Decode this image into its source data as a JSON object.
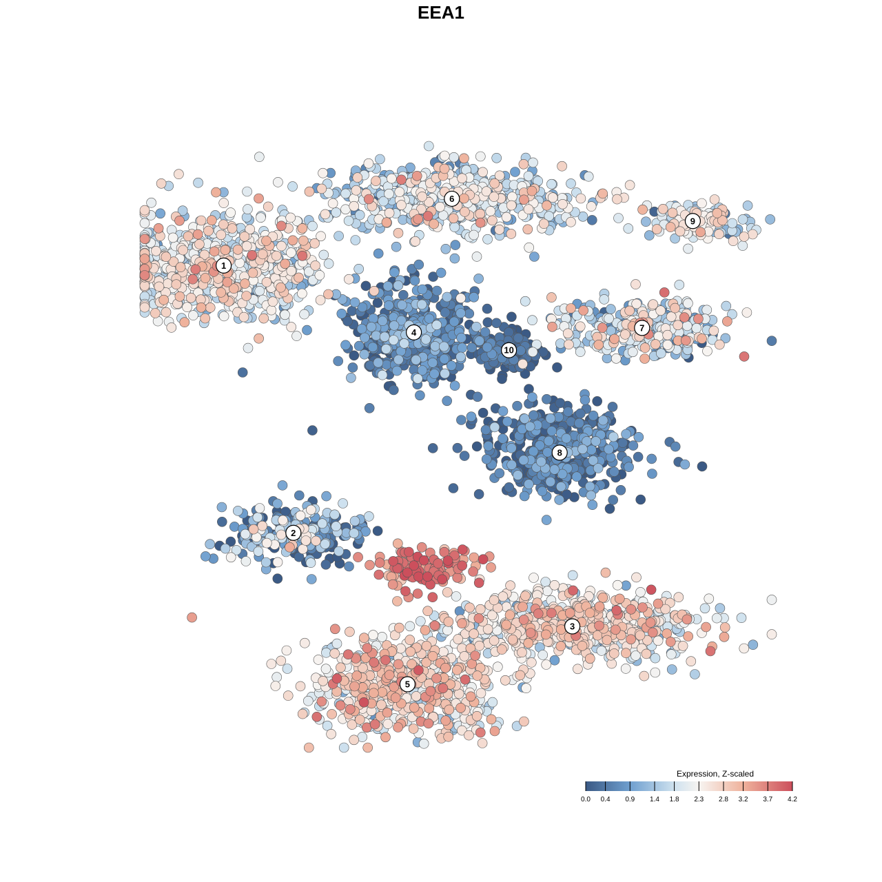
{
  "chart_data": {
    "type": "scatter",
    "title": "EEA1",
    "legend_title": "Expression, Z-scaled",
    "legend_placement": "bottom-right",
    "color_scale": {
      "min": 0.0,
      "max": 4.2,
      "ticks": [
        "0.0",
        "0.4",
        "0.9",
        "1.4",
        "1.8",
        "2.3",
        "2.8",
        "3.2",
        "3.7",
        "4.2"
      ],
      "stops": [
        {
          "value": 0.0,
          "color": "#3b5a85"
        },
        {
          "value": 0.9,
          "color": "#6f9fcf"
        },
        {
          "value": 1.8,
          "color": "#cfe2ef"
        },
        {
          "value": 2.3,
          "color": "#f7f4f1"
        },
        {
          "value": 3.2,
          "color": "#efb29c"
        },
        {
          "value": 4.2,
          "color": "#cc4f5c"
        }
      ]
    },
    "grid": false,
    "axes_visible": false,
    "clusters": [
      {
        "id": "1",
        "x": 0.13,
        "y": 0.69,
        "spread_x": 0.095,
        "spread_y": 0.075,
        "mean_expr": 2.1,
        "sd_expr": 0.6,
        "n": 700
      },
      {
        "id": "2",
        "x": 0.24,
        "y": 0.09,
        "spread_x": 0.06,
        "spread_y": 0.04,
        "mean_expr": 0.9,
        "sd_expr": 0.9,
        "n": 260
      },
      {
        "id": "3",
        "x": 0.68,
        "y": -0.12,
        "spread_x": 0.12,
        "spread_y": 0.05,
        "mean_expr": 2.3,
        "sd_expr": 0.6,
        "n": 650
      },
      {
        "id": "4",
        "x": 0.43,
        "y": 0.54,
        "spread_x": 0.06,
        "spread_y": 0.065,
        "mean_expr": 0.5,
        "sd_expr": 0.5,
        "n": 450
      },
      {
        "id": "5",
        "x": 0.42,
        "y": -0.25,
        "spread_x": 0.09,
        "spread_y": 0.065,
        "mean_expr": 2.5,
        "sd_expr": 0.6,
        "n": 550
      },
      {
        "id": "6",
        "x": 0.49,
        "y": 0.84,
        "spread_x": 0.12,
        "spread_y": 0.045,
        "mean_expr": 1.8,
        "sd_expr": 0.7,
        "n": 520
      },
      {
        "id": "7",
        "x": 0.79,
        "y": 0.55,
        "spread_x": 0.085,
        "spread_y": 0.04,
        "mean_expr": 1.8,
        "sd_expr": 0.8,
        "n": 280
      },
      {
        "id": "8",
        "x": 0.66,
        "y": 0.27,
        "spread_x": 0.075,
        "spread_y": 0.06,
        "mean_expr": 0.3,
        "sd_expr": 0.5,
        "n": 420
      },
      {
        "id": "9",
        "x": 0.87,
        "y": 0.79,
        "spread_x": 0.045,
        "spread_y": 0.025,
        "mean_expr": 1.9,
        "sd_expr": 0.6,
        "n": 130
      },
      {
        "id": "10",
        "x": 0.58,
        "y": 0.5,
        "spread_x": 0.03,
        "spread_y": 0.03,
        "mean_expr": 0.1,
        "sd_expr": 0.3,
        "n": 130
      }
    ],
    "hotspot": {
      "x": 0.45,
      "y": 0.01,
      "spread_x": 0.05,
      "spread_y": 0.03,
      "mean_expr": 3.6,
      "sd_expr": 0.4,
      "n": 110
    },
    "outliers": {
      "x": [
        0.16,
        0.27,
        0.46,
        0.56,
        0.52,
        0.62,
        0.36,
        0.08
      ],
      "y": [
        0.45,
        0.32,
        0.28,
        0.33,
        0.4,
        0.71,
        0.37,
        -0.1
      ],
      "expr": [
        0.3,
        0.1,
        0.2,
        0.0,
        0.1,
        1.0,
        0.5,
        3.4
      ]
    },
    "x_range": [
      0.0,
      1.0
    ],
    "y_range": [
      -0.4,
      1.0
    ]
  }
}
